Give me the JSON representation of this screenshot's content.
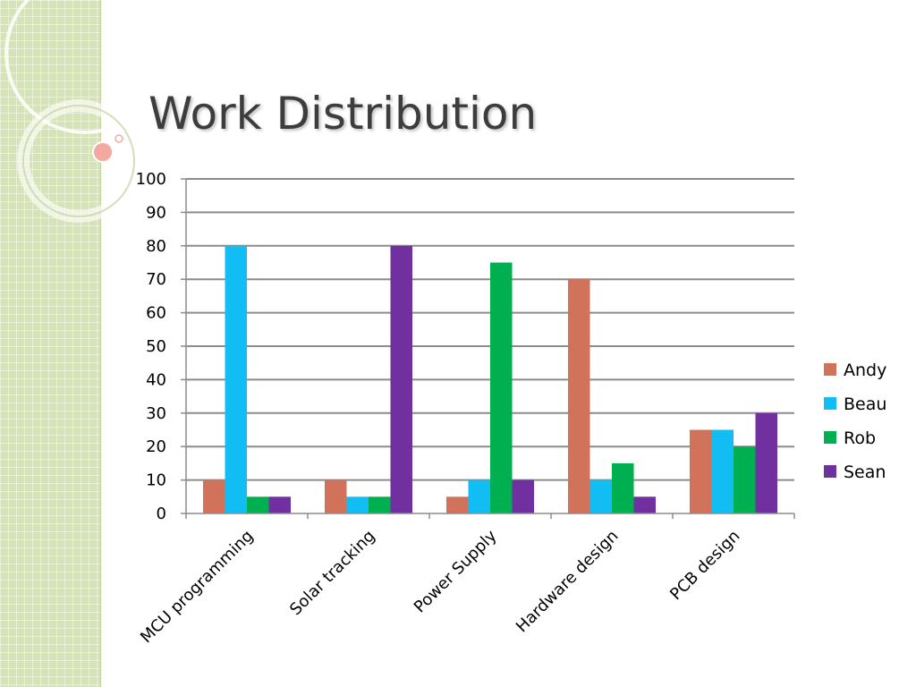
{
  "slide": {
    "title": "Work Distribution",
    "theme_colors": {
      "band": "#d6e3b8",
      "accent": "#f4a9a0",
      "title": "#3d3d3d"
    }
  },
  "chart_data": {
    "type": "bar",
    "categories": [
      "MCU programming",
      "Solar tracking",
      "Power Supply",
      "Hardware design",
      "PCB design"
    ],
    "series": [
      {
        "name": "Andy",
        "color": "#d0735a",
        "values": [
          10,
          10,
          5,
          70,
          25
        ]
      },
      {
        "name": "Beau",
        "color": "#12bdf3",
        "values": [
          80,
          5,
          10,
          10,
          25
        ]
      },
      {
        "name": "Rob",
        "color": "#00b050",
        "values": [
          5,
          5,
          75,
          15,
          20
        ]
      },
      {
        "name": "Sean",
        "color": "#7030a0",
        "values": [
          5,
          80,
          10,
          5,
          30
        ]
      }
    ],
    "ylim": [
      0,
      100
    ],
    "yticks": [
      0,
      10,
      20,
      30,
      40,
      50,
      60,
      70,
      80,
      90,
      100
    ],
    "grid": true,
    "legend_position": "right",
    "title": "",
    "xlabel": "",
    "ylabel": ""
  }
}
